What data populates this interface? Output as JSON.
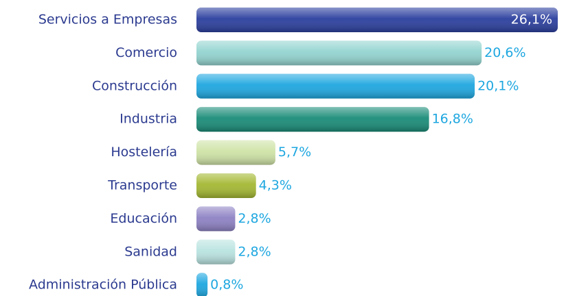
{
  "chart_data": {
    "type": "hbar",
    "categories": [
      "Servicios a Empresas",
      "Comercio",
      "Construcción",
      "Industria",
      "Hostelería",
      "Transporte",
      "Educación",
      "Sanidad",
      "Administración Pública"
    ],
    "values": [
      26.1,
      20.6,
      20.1,
      16.8,
      5.7,
      4.3,
      2.8,
      2.8,
      0.8
    ],
    "value_labels": [
      "26,1%",
      "20,6%",
      "20,1%",
      "16,8%",
      "5,7%",
      "4,3%",
      "2,8%",
      "2,8%",
      "0,8%"
    ],
    "colors": [
      "#2b3f9e",
      "#93d4d0",
      "#1ea7e0",
      "#1a8c78",
      "#cfe3a6",
      "#a4b832",
      "#8e82c4",
      "#b9e3e0",
      "#1ea7e0"
    ]
  }
}
